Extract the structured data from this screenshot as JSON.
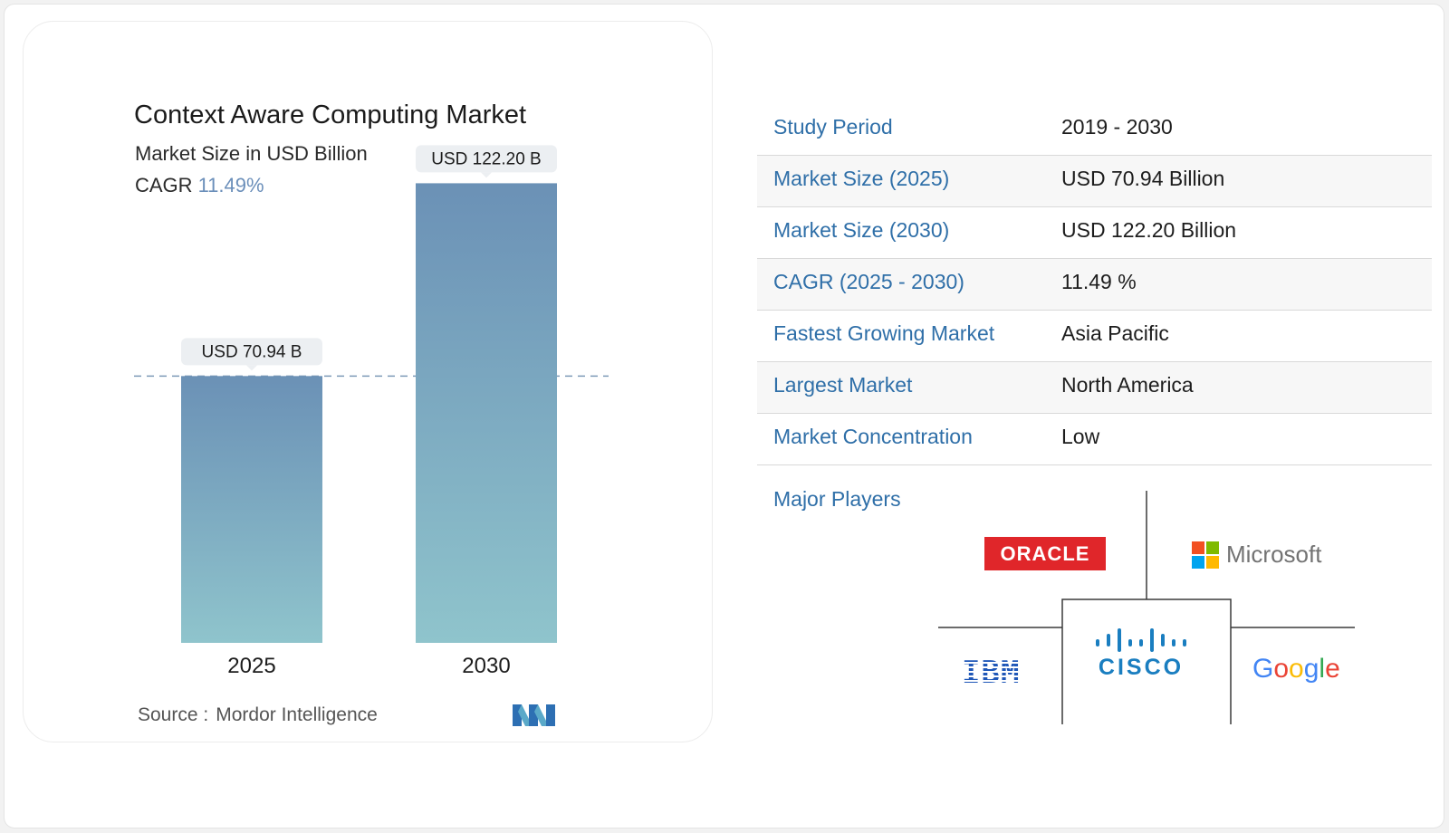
{
  "chart_data": {
    "type": "bar",
    "title": "Context Aware Computing Market",
    "subtitle": "Market Size in USD Billion",
    "cagr_label": "CAGR",
    "cagr_value": "11.49%",
    "categories": [
      "2025",
      "2030"
    ],
    "values": [
      70.94,
      122.2
    ],
    "data_labels": [
      "USD 70.94 B",
      "USD 122.20 B"
    ],
    "ylim": [
      0,
      130
    ],
    "grid": false,
    "reference_line": 70.94,
    "bar_gradient": [
      "#6b91b6",
      "#8fc4cc"
    ],
    "source_label": "Source :",
    "source": "Mordor Intelligence"
  },
  "table": [
    {
      "key": "Study Period",
      "value": "2019 - 2030"
    },
    {
      "key": "Market Size (2025)",
      "value": "USD 70.94 Billion"
    },
    {
      "key": "Market Size (2030)",
      "value": "USD 122.20 Billion"
    },
    {
      "key": "CAGR (2025 - 2030)",
      "value": "11.49 %"
    },
    {
      "key": "Fastest Growing Market",
      "value": "Asia Pacific"
    },
    {
      "key": "Largest Market",
      "value": "North America"
    },
    {
      "key": "Market Concentration",
      "value": "Low"
    }
  ],
  "major_players": {
    "label": "Major Players",
    "logos": {
      "oracle": "ORACLE",
      "microsoft": "Microsoft",
      "cisco": "CISCO",
      "ibm": "IBM",
      "google": "Google"
    }
  },
  "colors": {
    "accent_blue": "#2f6fa8",
    "cagr_blue": "#6b8fba",
    "oracle_red": "#e0262a",
    "cisco_blue": "#1a7ec0",
    "ibm_blue": "#1f57b8"
  },
  "icons": {
    "brand_logo": "mordor-intelligence-logo-icon"
  }
}
